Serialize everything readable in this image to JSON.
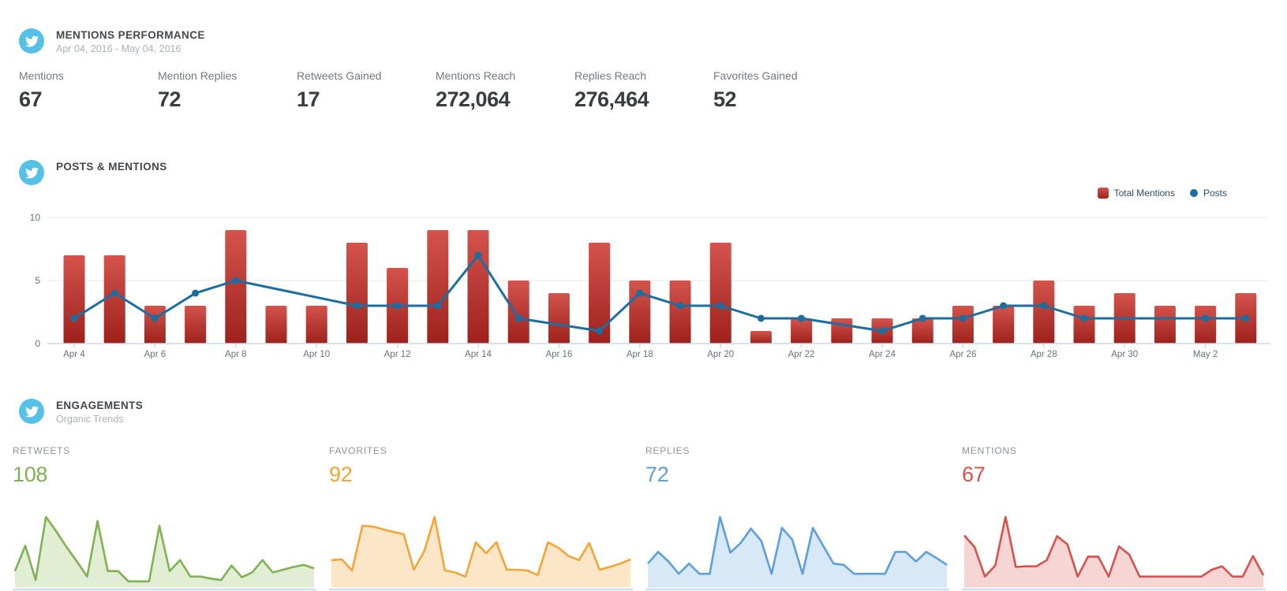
{
  "mentions_performance": {
    "icon": "twitter-bird",
    "title": "MENTIONS PERFORMANCE",
    "date_range": "Apr 04, 2016 - May 04, 2016",
    "stats": [
      {
        "label": "Mentions",
        "value": "67"
      },
      {
        "label": "Mention Replies",
        "value": "72"
      },
      {
        "label": "Retweets Gained",
        "value": "17"
      },
      {
        "label": "Mentions Reach",
        "value": "272,064"
      },
      {
        "label": "Replies Reach",
        "value": "276,464"
      },
      {
        "label": "Favorites Gained",
        "value": "52"
      }
    ]
  },
  "posts_mentions": {
    "icon": "twitter-bird",
    "title": "POSTS & MENTIONS",
    "legend": [
      {
        "label": "Total Mentions",
        "swatch": "red-square"
      },
      {
        "label": "Posts",
        "swatch": "blue-dot"
      }
    ]
  },
  "engagements": {
    "icon": "twitter-bird",
    "title": "ENGAGEMENTS",
    "subtitle": "Organic Trends",
    "cards": [
      {
        "label": "RETWEETS",
        "value": "108"
      },
      {
        "label": "FAVORITES",
        "value": "92"
      },
      {
        "label": "REPLIES",
        "value": "72"
      },
      {
        "label": "MENTIONS",
        "value": "67"
      }
    ]
  },
  "chart_data": [
    {
      "type": "bar",
      "title": "Posts & Mentions",
      "categories": [
        "Apr 4",
        "Apr 5",
        "Apr 6",
        "Apr 7",
        "Apr 8",
        "Apr 9",
        "Apr 10",
        "Apr 11",
        "Apr 12",
        "Apr 13",
        "Apr 14",
        "Apr 15",
        "Apr 16",
        "Apr 17",
        "Apr 18",
        "Apr 19",
        "Apr 20",
        "Apr 21",
        "Apr 22",
        "Apr 23",
        "Apr 24",
        "Apr 25",
        "Apr 26",
        "Apr 27",
        "Apr 28",
        "Apr 29",
        "Apr 30",
        "May 1",
        "May 2",
        "May 3"
      ],
      "series": [
        {
          "name": "Total Mentions",
          "type": "bar",
          "color_top": "#d4544d",
          "color_bottom": "#9e211c",
          "values": [
            7,
            7,
            3,
            3,
            9,
            3,
            3,
            8,
            6,
            9,
            9,
            5,
            4,
            8,
            5,
            5,
            8,
            1,
            2,
            2,
            2,
            2,
            3,
            3,
            5,
            3,
            4,
            3,
            3,
            4
          ]
        },
        {
          "name": "Posts",
          "type": "line",
          "color": "#1c6da0",
          "values": [
            2,
            4,
            2,
            4,
            5,
            null,
            null,
            3,
            3,
            3,
            7,
            2,
            null,
            1,
            4,
            3,
            3,
            2,
            2,
            null,
            1,
            2,
            2,
            3,
            3,
            2,
            null,
            null,
            2,
            2
          ]
        }
      ],
      "ylim": [
        0,
        10
      ],
      "yticks": [
        0,
        5,
        10
      ],
      "xtick_every": 2,
      "grid_color": "#e9e9e9",
      "axis_color": "#c9d8e9",
      "tick_label_color": "#67727c",
      "legend_position": "top-right"
    },
    {
      "type": "area",
      "name": "Retweets",
      "total": 108,
      "color": "#7fb254",
      "fill": "#e2eed4",
      "ymax": 10,
      "values": [
        2.1,
        5.8,
        0.8,
        10,
        7.9,
        5.6,
        3.5,
        1.3,
        9.4,
        2.1,
        2.1,
        0.6,
        0.6,
        0.6,
        8.7,
        2.1,
        3.7,
        1.3,
        1.3,
        1.0,
        0.8,
        2.9,
        1.2,
        1.9,
        3.7,
        1.9,
        2.3,
        2.7,
        3.0,
        2.5
      ]
    },
    {
      "type": "area",
      "name": "Favorites",
      "total": 92,
      "color": "#f3a536",
      "fill": "#fbe7c7",
      "ymax": 10,
      "values": [
        3.7,
        3.8,
        2.2,
        8.7,
        8.6,
        8.2,
        7.8,
        7.5,
        2.3,
        5.0,
        10,
        2.2,
        1.9,
        1.3,
        6.3,
        4.7,
        6.3,
        2.3,
        2.3,
        2.2,
        1.5,
        6.3,
        5.5,
        4.3,
        3.7,
        6.2,
        2.3,
        2.7,
        3.2,
        3.8
      ]
    },
    {
      "type": "area",
      "name": "Replies",
      "total": 72,
      "color": "#5d9fd8",
      "fill": "#d7e8f7",
      "ymax": 10,
      "values": [
        3.2,
        4.9,
        3.5,
        1.7,
        3.2,
        1.7,
        1.7,
        10,
        4.8,
        6.2,
        8.3,
        6.5,
        1.7,
        8.4,
        6.7,
        1.7,
        8.4,
        5.8,
        3.2,
        3.0,
        1.7,
        1.7,
        1.7,
        1.7,
        4.9,
        4.9,
        3.5,
        4.9,
        4.0,
        3.0
      ]
    },
    {
      "type": "area",
      "name": "Mentions",
      "total": 67,
      "color": "#d8514c",
      "fill": "#f6d6d4",
      "ymax": 10,
      "values": [
        7.3,
        5.6,
        1.3,
        2.9,
        10,
        2.7,
        2.8,
        2.8,
        3.7,
        7.2,
        6.0,
        1.3,
        4.2,
        4.2,
        1.3,
        5.7,
        4.5,
        1.3,
        1.3,
        1.3,
        1.3,
        1.3,
        1.3,
        1.3,
        2.3,
        2.8,
        1.3,
        1.3,
        4.3,
        1.5
      ]
    },
    {
      "baseline_color": "#cfdeed"
    }
  ]
}
